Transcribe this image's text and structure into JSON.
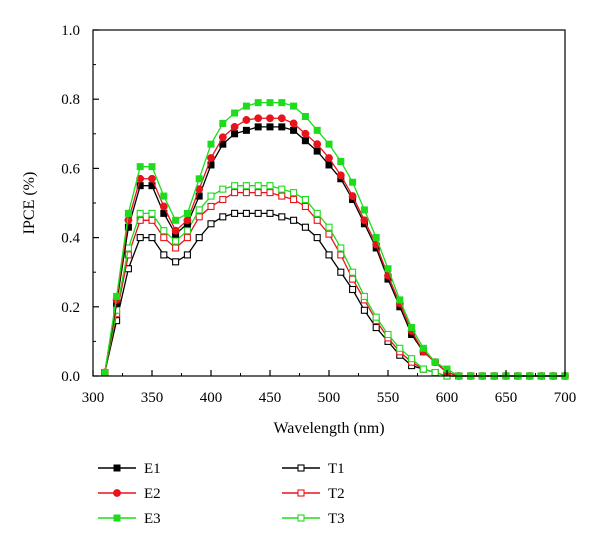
{
  "chart_data": {
    "type": "line",
    "title": "",
    "xlabel": "Wavelength (nm)",
    "ylabel": "IPCE (%)",
    "xlim": [
      300,
      700
    ],
    "ylim": [
      0.0,
      1.0
    ],
    "xticks": [
      "300",
      "350",
      "400",
      "450",
      "500",
      "550",
      "600",
      "650",
      "700"
    ],
    "yticks": [
      "0.0",
      "0.2",
      "0.4",
      "0.6",
      "0.8",
      "1.0"
    ],
    "grid": false,
    "legend_position": "bottom",
    "x": [
      310,
      320,
      330,
      340,
      350,
      360,
      370,
      380,
      390,
      400,
      410,
      420,
      430,
      440,
      450,
      460,
      470,
      480,
      490,
      500,
      510,
      520,
      530,
      540,
      550,
      560,
      570,
      580,
      590,
      600,
      610,
      620,
      630,
      640,
      650,
      660,
      670,
      680,
      690,
      700
    ],
    "series": [
      {
        "name": "E1",
        "color": "#000000",
        "marker": "filled-square",
        "values": [
          0.01,
          0.21,
          0.43,
          0.55,
          0.55,
          0.47,
          0.41,
          0.44,
          0.52,
          0.61,
          0.67,
          0.7,
          0.71,
          0.72,
          0.72,
          0.72,
          0.71,
          0.68,
          0.65,
          0.61,
          0.57,
          0.51,
          0.44,
          0.37,
          0.28,
          0.2,
          0.12,
          0.07,
          0.04,
          0.01,
          0.0,
          0.0,
          0.0,
          0.0,
          0.0,
          0.0,
          0.0,
          0.0,
          0.0,
          0.0
        ]
      },
      {
        "name": "E2",
        "color": "#e8141b",
        "marker": "filled-circle",
        "values": [
          0.01,
          0.22,
          0.45,
          0.57,
          0.57,
          0.49,
          0.42,
          0.45,
          0.54,
          0.63,
          0.69,
          0.72,
          0.74,
          0.745,
          0.745,
          0.745,
          0.73,
          0.7,
          0.67,
          0.63,
          0.58,
          0.52,
          0.45,
          0.38,
          0.29,
          0.21,
          0.13,
          0.07,
          0.04,
          0.01,
          0.0,
          0.0,
          0.0,
          0.0,
          0.0,
          0.0,
          0.0,
          0.0,
          0.0,
          0.0
        ]
      },
      {
        "name": "E3",
        "color": "#1cdc1c",
        "marker": "filled-square",
        "values": [
          0.01,
          0.23,
          0.47,
          0.605,
          0.605,
          0.52,
          0.45,
          0.47,
          0.57,
          0.67,
          0.73,
          0.76,
          0.78,
          0.79,
          0.79,
          0.79,
          0.78,
          0.75,
          0.71,
          0.67,
          0.62,
          0.56,
          0.48,
          0.4,
          0.31,
          0.22,
          0.14,
          0.08,
          0.04,
          0.02,
          0.0,
          0.0,
          0.0,
          0.0,
          0.0,
          0.0,
          0.0,
          0.0,
          0.0,
          0.0
        ]
      },
      {
        "name": "T1",
        "color": "#000000",
        "marker": "open-square",
        "values": [
          0.01,
          0.16,
          0.31,
          0.4,
          0.4,
          0.35,
          0.33,
          0.35,
          0.4,
          0.44,
          0.46,
          0.47,
          0.47,
          0.47,
          0.47,
          0.46,
          0.45,
          0.43,
          0.4,
          0.35,
          0.3,
          0.25,
          0.19,
          0.14,
          0.1,
          0.06,
          0.03,
          0.02,
          0.01,
          0.0,
          0.0,
          0.0,
          0.0,
          0.0,
          0.0,
          0.0,
          0.0,
          0.0,
          0.0,
          0.0
        ]
      },
      {
        "name": "T2",
        "color": "#e8141b",
        "marker": "open-square",
        "values": [
          0.01,
          0.18,
          0.35,
          0.45,
          0.45,
          0.4,
          0.37,
          0.4,
          0.46,
          0.49,
          0.51,
          0.53,
          0.53,
          0.53,
          0.53,
          0.52,
          0.51,
          0.49,
          0.45,
          0.41,
          0.35,
          0.28,
          0.22,
          0.16,
          0.11,
          0.07,
          0.04,
          0.02,
          0.01,
          0.0,
          0.0,
          0.0,
          0.0,
          0.0,
          0.0,
          0.0,
          0.0,
          0.0,
          0.0,
          0.0
        ]
      },
      {
        "name": "T3",
        "color": "#1cdc1c",
        "marker": "open-square",
        "values": [
          0.01,
          0.19,
          0.37,
          0.47,
          0.47,
          0.42,
          0.39,
          0.42,
          0.48,
          0.52,
          0.54,
          0.55,
          0.55,
          0.55,
          0.55,
          0.54,
          0.53,
          0.51,
          0.47,
          0.43,
          0.37,
          0.3,
          0.23,
          0.17,
          0.12,
          0.08,
          0.05,
          0.02,
          0.01,
          0.0,
          0.0,
          0.0,
          0.0,
          0.0,
          0.0,
          0.0,
          0.0,
          0.0,
          0.0,
          0.0
        ]
      }
    ]
  }
}
